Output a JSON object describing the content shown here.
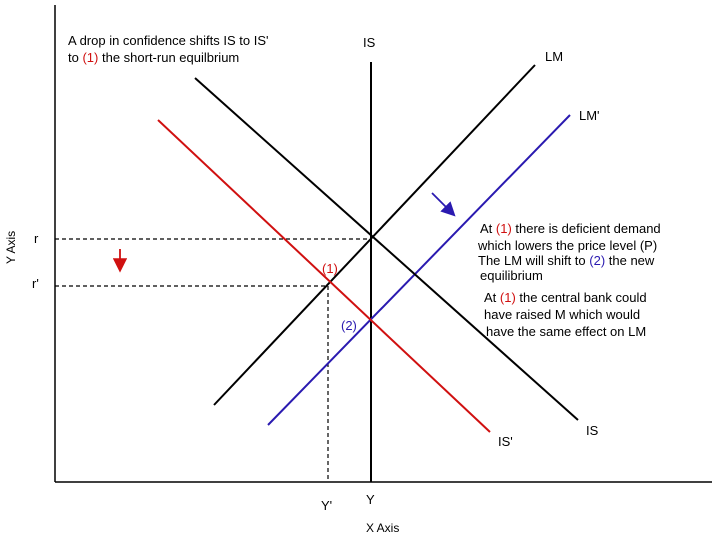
{
  "axes": {
    "x_label": "X Axis",
    "y_label": "Y Axis",
    "x_ticks": {
      "y_prime": "Y'",
      "y": "Y"
    },
    "y_ticks": {
      "r": "r",
      "r_prime": "r'"
    }
  },
  "curves": {
    "is_vertical_label": "IS",
    "is_label": "IS",
    "is_prime_label": "IS'",
    "lm_label": "LM",
    "lm_prime_label": "LM'"
  },
  "points": {
    "p1": "(1)",
    "p2": "(2)"
  },
  "annotations": {
    "top": {
      "line1": "A drop in confidence shifts IS to IS'",
      "line2_pre": "to ",
      "line2_marker": "(1)",
      "line2_post": " the short-run equilbrium"
    },
    "block1": {
      "l1_pre": "At ",
      "l1_marker": "(1)",
      "l1_post": " there is deficient demand",
      "l2": "which lowers the price level (P)"
    },
    "block2": {
      "l1_pre": "The LM will shift to ",
      "l1_marker": "(2)",
      "l1_post": " the new",
      "l2": "equilibrium"
    },
    "block3": {
      "l1_pre": "At ",
      "l1_marker": "(1)",
      "l1_post": " the central bank could",
      "l2": "have raised M which would",
      "l3": "have the same effect on LM"
    }
  },
  "colors": {
    "black": "#000000",
    "red": "#d01010",
    "blue": "#2a1ab0"
  }
}
